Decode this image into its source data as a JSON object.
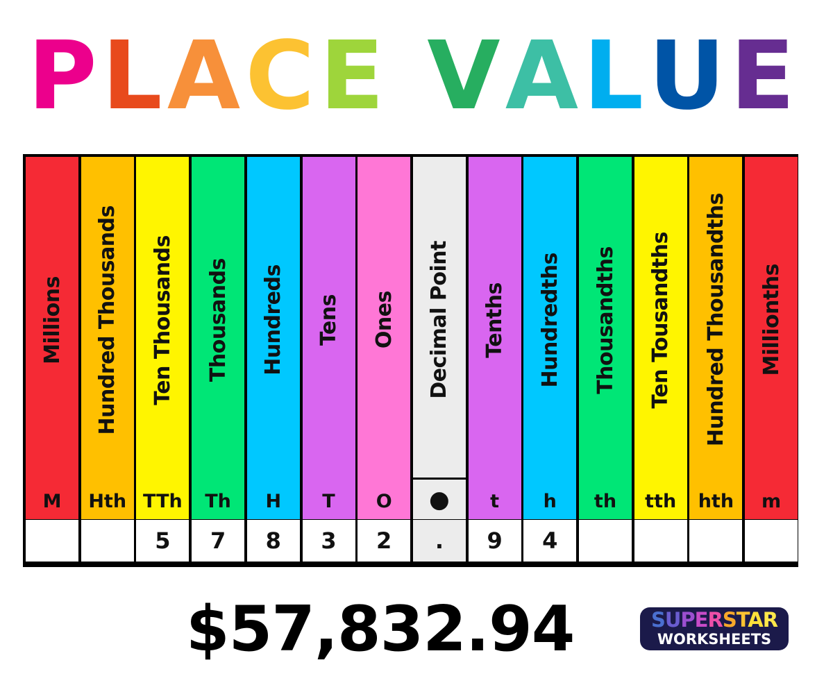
{
  "title": {
    "text": "PLACE VALUE",
    "letters": [
      "P",
      "L",
      "A",
      "C",
      "E",
      " ",
      "V",
      "A",
      "L",
      "U",
      "E"
    ],
    "letter_colors": [
      "#ec008c",
      "#e84a1c",
      "#f7903a",
      "#fcc232",
      "#9ed53b",
      "#ffffff",
      "#27ae60",
      "#3dbfa5",
      "#00aeef",
      "#0054a6",
      "#662d91"
    ]
  },
  "columns": [
    {
      "name": "Millions",
      "abbr": "M",
      "digit": "",
      "color": "#f52a35"
    },
    {
      "name": "Hundred Thousands",
      "abbr": "Hth",
      "digit": "",
      "color": "#ffc000"
    },
    {
      "name": "Ten Thousands",
      "abbr": "TTh",
      "digit": "5",
      "color": "#fff500"
    },
    {
      "name": "Thousands",
      "abbr": "Th",
      "digit": "7",
      "color": "#00e676"
    },
    {
      "name": "Hundreds",
      "abbr": "H",
      "digit": "8",
      "color": "#00c8ff"
    },
    {
      "name": "Tens",
      "abbr": "T",
      "digit": "3",
      "color": "#d966f0"
    },
    {
      "name": "Ones",
      "abbr": "O",
      "digit": "2",
      "color": "#ff77d6"
    },
    {
      "name": "Decimal Point",
      "abbr": "●",
      "digit": ".",
      "color": "#ececec"
    },
    {
      "name": "Tenths",
      "abbr": "t",
      "digit": "9",
      "color": "#d966f0"
    },
    {
      "name": "Hundredths",
      "abbr": "h",
      "digit": "4",
      "color": "#00c8ff"
    },
    {
      "name": "Thousandths",
      "abbr": "th",
      "digit": "",
      "color": "#00e676"
    },
    {
      "name": "Ten Tousandths",
      "abbr": "tth",
      "digit": "",
      "color": "#fff500"
    },
    {
      "name": "Hundred Thousandths",
      "abbr": "hth",
      "digit": "",
      "color": "#ffc000"
    },
    {
      "name": "Millionths",
      "abbr": "m",
      "digit": "",
      "color": "#f52a35"
    }
  ],
  "amount": "$57,832.94",
  "logo": {
    "line1": "SUPERSTAR",
    "line2": "WORKSHEETS",
    "line1_colors": [
      "#4a6fd0",
      "#6a5cd0",
      "#9b4fd0",
      "#c74bc8",
      "#ec4fa8",
      "#f7a82a",
      "#fcc232",
      "#fde03a",
      "#fde84a"
    ]
  }
}
